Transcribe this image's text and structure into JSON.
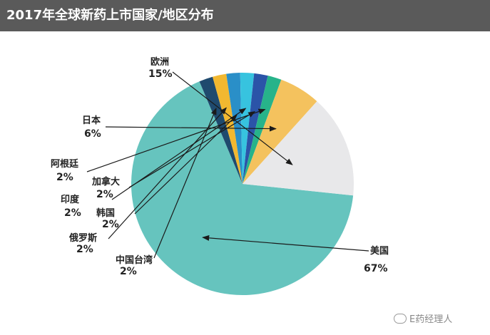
{
  "title": "2017年全球新药上市国家/地区分布",
  "watermark": "E药经理人",
  "chart_data": {
    "type": "pie",
    "title": "2017年全球新药上市国家/地区分布",
    "slices": [
      {
        "label": "美国",
        "value": 67,
        "display": "67%",
        "color": "#66c4be"
      },
      {
        "label": "中国台湾",
        "value": 2,
        "display": "2%",
        "color": "#1f4a6e"
      },
      {
        "label": "俄罗斯",
        "value": 2,
        "display": "2%",
        "color": "#f2b830"
      },
      {
        "label": "韩国",
        "value": 2,
        "display": "2%",
        "color": "#2a8fc8"
      },
      {
        "label": "印度",
        "value": 2,
        "display": "2%",
        "color": "#37c3df"
      },
      {
        "label": "加拿大",
        "value": 2,
        "display": "2%",
        "color": "#2b54a8"
      },
      {
        "label": "阿根廷",
        "value": 2,
        "display": "2%",
        "color": "#27b38a"
      },
      {
        "label": "日本",
        "value": 6,
        "display": "6%",
        "color": "#f4c25e"
      },
      {
        "label": "欧洲",
        "value": 15,
        "display": "15%",
        "color": "#e8e8ea"
      }
    ]
  }
}
